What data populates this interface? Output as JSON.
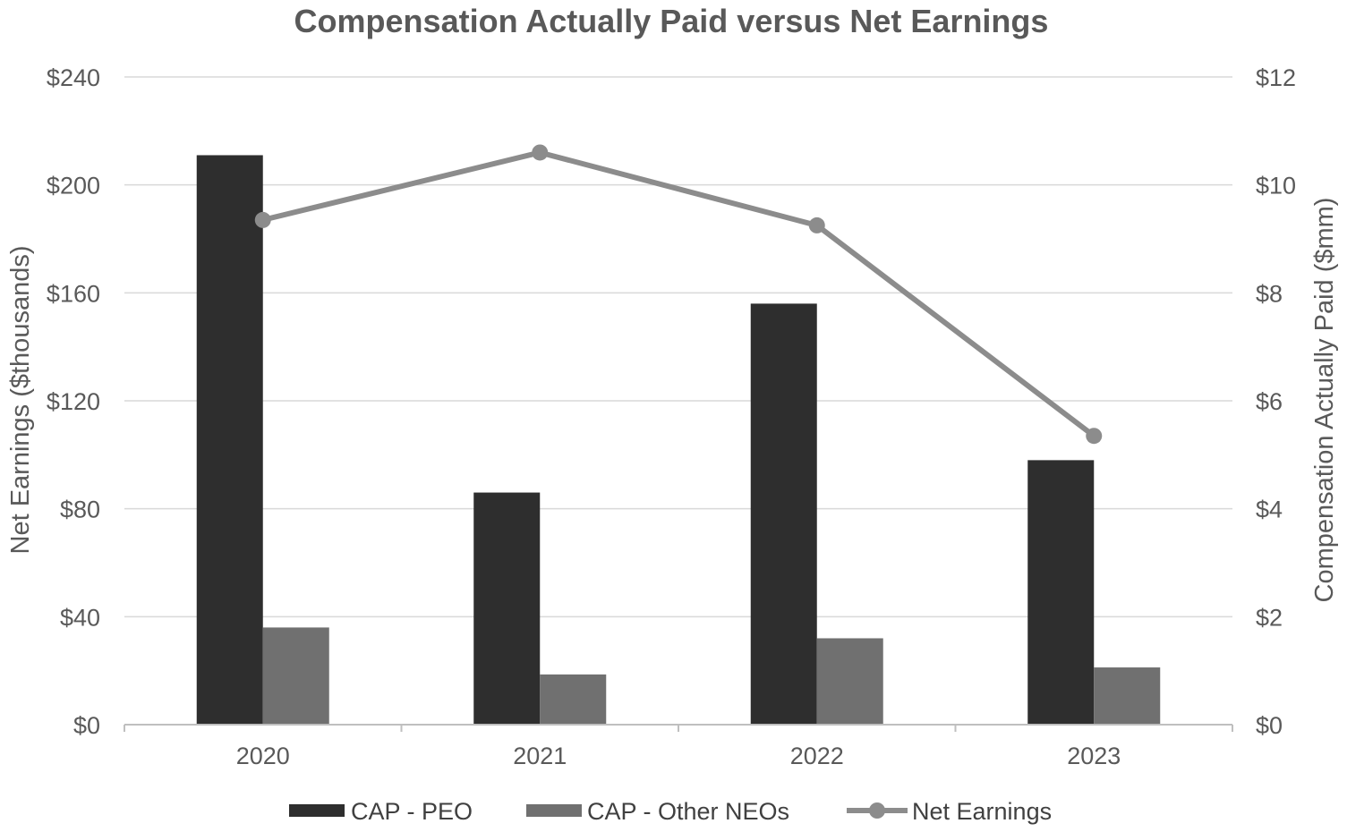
{
  "chart_data": {
    "type": "bar",
    "title": "Compensation Actually Paid versus Net Earnings",
    "categories": [
      "2020",
      "2021",
      "2022",
      "2023"
    ],
    "series": [
      {
        "name": "CAP - PEO",
        "type": "bar",
        "axis": "right",
        "color": "#2e2e2e",
        "values": [
          10.55,
          4.3,
          7.8,
          4.9
        ]
      },
      {
        "name": "CAP - Other NEOs",
        "type": "bar",
        "axis": "right",
        "color": "#707070",
        "values": [
          1.8,
          0.93,
          1.6,
          1.06
        ]
      },
      {
        "name": "Net Earnings",
        "type": "line",
        "axis": "left",
        "color": "#8c8c8c",
        "values": [
          187,
          212,
          185,
          107
        ]
      }
    ],
    "left_axis": {
      "label": "Net Earnings ($thousands)",
      "ylim": [
        0,
        240
      ],
      "ticks": [
        0,
        40,
        80,
        120,
        160,
        200,
        240
      ],
      "tick_labels": [
        "$0",
        "$40",
        "$80",
        "$120",
        "$160",
        "$200",
        "$240"
      ]
    },
    "right_axis": {
      "label": "Compensation Actually Paid ($mm)",
      "ylim": [
        0,
        12
      ],
      "ticks": [
        0,
        2,
        4,
        6,
        8,
        10,
        12
      ],
      "tick_labels": [
        "$0",
        "$2",
        "$4",
        "$6",
        "$8",
        "$10",
        "$12"
      ]
    },
    "grid": true,
    "legend_position": "bottom"
  }
}
